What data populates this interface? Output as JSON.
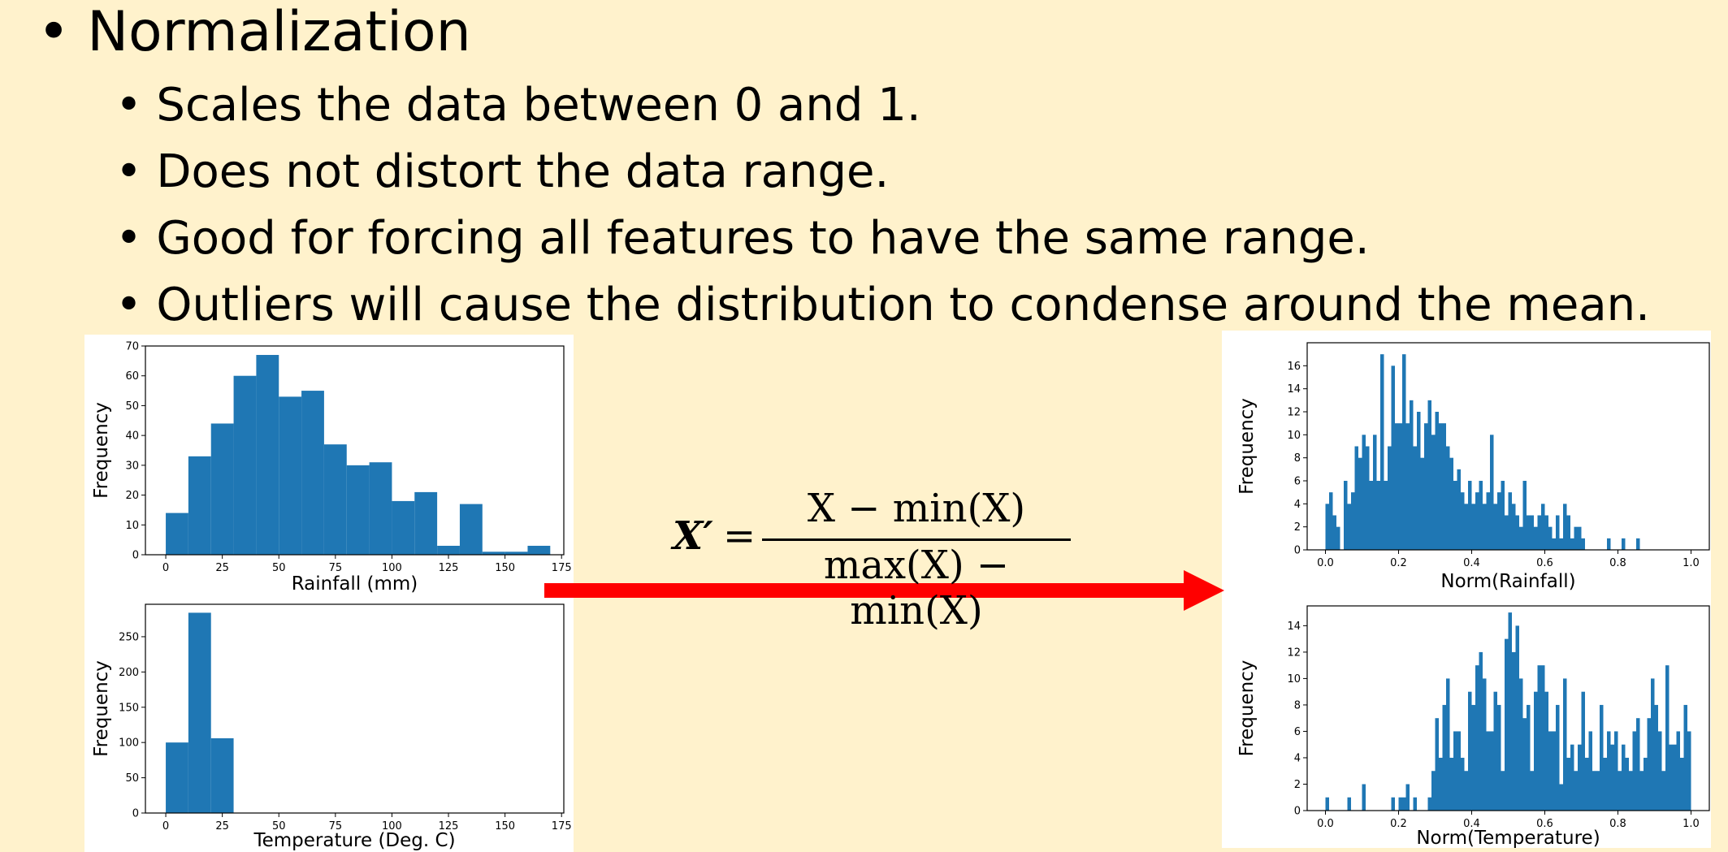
{
  "slide": {
    "title": "Normalization",
    "bullets": [
      "Scales the data between 0 and 1.",
      "Does not distort the data range.",
      "Good for forcing all features to have the same range.",
      "Outliers will cause the distribution to condense around the mean."
    ],
    "formula": {
      "lhs": "X′",
      "eq": "=",
      "numerator": "X − min(X)",
      "denominator": "max(X) − min(X)"
    },
    "arrow_color": "#ff0000",
    "background": "#fff2cc"
  },
  "chart_data": [
    {
      "type": "bar",
      "xlabel": "Rainfall (mm)",
      "ylabel": "Frequency",
      "xlim": [
        -9,
        176
      ],
      "ylim": [
        0,
        70
      ],
      "xticks": [
        0,
        25,
        50,
        75,
        100,
        125,
        150,
        175
      ],
      "yticks": [
        0,
        10,
        20,
        30,
        40,
        50,
        60,
        70
      ],
      "bin_edges": [
        0,
        10,
        20,
        30,
        40,
        50,
        60,
        70,
        80,
        90,
        100,
        110,
        120,
        130,
        140,
        150,
        160,
        170
      ],
      "values": [
        14,
        33,
        44,
        60,
        67,
        53,
        55,
        37,
        30,
        31,
        18,
        21,
        3,
        17,
        1,
        1,
        3
      ],
      "color": "#1f77b4"
    },
    {
      "type": "bar",
      "xlabel": "Temperature (Deg. C)",
      "ylabel": "Frequency",
      "xlim": [
        -9,
        176
      ],
      "ylim": [
        0,
        296
      ],
      "xticks": [
        0,
        25,
        50,
        75,
        100,
        125,
        150,
        175
      ],
      "yticks": [
        0,
        50,
        100,
        150,
        200,
        250
      ],
      "bin_edges": [
        0,
        10,
        20,
        30
      ],
      "values": [
        100,
        284,
        106
      ],
      "color": "#1f77b4"
    },
    {
      "type": "bar",
      "xlabel": "Norm(Rainfall)",
      "ylabel": "Frequency",
      "xlim": [
        -0.05,
        1.05
      ],
      "ylim": [
        0,
        18
      ],
      "xticks": [
        0.0,
        0.2,
        0.4,
        0.6,
        0.8,
        1.0
      ],
      "xtick_labels": [
        "0.0",
        "0.2",
        "0.4",
        "0.6",
        "0.8",
        "1.0"
      ],
      "yticks": [
        0,
        2,
        4,
        6,
        8,
        10,
        12,
        14,
        16
      ],
      "bin_start": 0.0,
      "bin_width": 0.01,
      "values": [
        4,
        5,
        3,
        2,
        0,
        6,
        4,
        5,
        9,
        8,
        10,
        9,
        6,
        10,
        6,
        17,
        6,
        9,
        16,
        11,
        11,
        17,
        11,
        13,
        9,
        12,
        8,
        11,
        13,
        10,
        12,
        11,
        11,
        9,
        8,
        6,
        7,
        5,
        4,
        6,
        4,
        5,
        6,
        4,
        5,
        10,
        4,
        5,
        6,
        3,
        5,
        4,
        3,
        2,
        6,
        3,
        3,
        2,
        3,
        4,
        3,
        2,
        1,
        3,
        1,
        4,
        3,
        1,
        2,
        2,
        1,
        0,
        0,
        0,
        0,
        0,
        0,
        1,
        0,
        0,
        0,
        1,
        0,
        0,
        0,
        1,
        0,
        0,
        0,
        0,
        0,
        0,
        0,
        0,
        0,
        0,
        0,
        0,
        0,
        0
      ],
      "color": "#1f77b4"
    },
    {
      "type": "bar",
      "xlabel": "Norm(Temperature)",
      "ylabel": "Frequency",
      "xlim": [
        -0.05,
        1.05
      ],
      "ylim": [
        0,
        15.5
      ],
      "xticks": [
        0.0,
        0.2,
        0.4,
        0.6,
        0.8,
        1.0
      ],
      "xtick_labels": [
        "0.0",
        "0.2",
        "0.4",
        "0.6",
        "0.8",
        "1.0"
      ],
      "yticks": [
        0,
        2,
        4,
        6,
        8,
        10,
        12,
        14
      ],
      "bin_start": 0.0,
      "bin_width": 0.01,
      "values": [
        1,
        0,
        0,
        0,
        0,
        0,
        1,
        0,
        0,
        0,
        2,
        0,
        0,
        0,
        0,
        0,
        0,
        0,
        1,
        0,
        1,
        1,
        2,
        0,
        1,
        0,
        0,
        0,
        1,
        3,
        7,
        4,
        8,
        10,
        4,
        6,
        6,
        4,
        3,
        9,
        8,
        11,
        12,
        10,
        6,
        6,
        9,
        8,
        3,
        13,
        15,
        12,
        14,
        10,
        7,
        8,
        3,
        9,
        11,
        11,
        9,
        6,
        6,
        8,
        2,
        10,
        4,
        5,
        3,
        5,
        9,
        4,
        6,
        3,
        3,
        8,
        4,
        6,
        5,
        6,
        3,
        5,
        4,
        3,
        6,
        7,
        3,
        4,
        7,
        10,
        8,
        6,
        3,
        11,
        5,
        5,
        6,
        4,
        8,
        6
      ],
      "color": "#1f77b4"
    }
  ]
}
